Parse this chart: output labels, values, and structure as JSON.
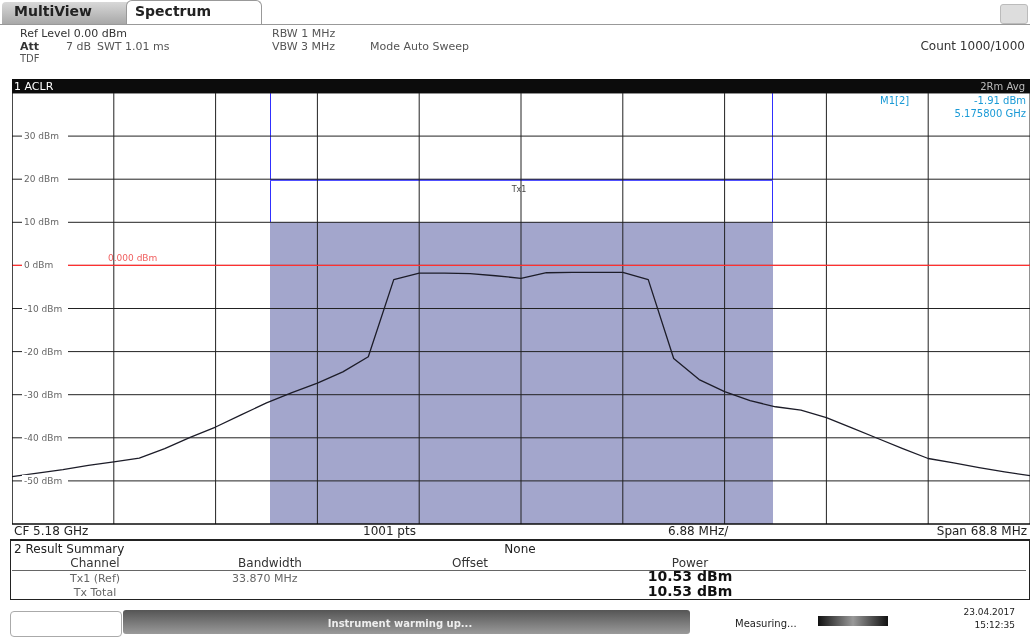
{
  "chart_data": {
    "type": "line",
    "categories": [
      null,
      null,
      null,
      null,
      null,
      null,
      null,
      null,
      null,
      null,
      null,
      null,
      null,
      null,
      null,
      null,
      null,
      null,
      null,
      null,
      null,
      null,
      null,
      null,
      null,
      null,
      null,
      null,
      null,
      null,
      null,
      null,
      null,
      null,
      null,
      null,
      null,
      null,
      null,
      null,
      null
    ],
    "series": [
      {
        "color": "#1c1c28",
        "values": [
          -49.0,
          -48.2,
          -47.4,
          -46.4,
          -45.6,
          -44.7,
          -42.5,
          -39.9,
          -37.5,
          -34.7,
          -31.9,
          -29.5,
          -27.3,
          -24.7,
          -21.2,
          -3.3,
          -1.8,
          -1.8,
          -1.9,
          -2.4,
          -3.0,
          -1.7,
          -1.6,
          -1.6,
          -1.6,
          -3.3,
          -21.6,
          -26.5,
          -29.3,
          -31.4,
          -32.8,
          -33.6,
          -35.3,
          -37.7,
          -40.1,
          -42.5,
          -44.8,
          -45.8,
          -46.9,
          -47.9,
          -48.8
        ]
      }
    ],
    "ylim": [
      -60,
      40
    ],
    "yticks": [
      {
        "value": -50,
        "label": "-50 dBm"
      },
      {
        "value": -40,
        "label": "-40 dBm"
      },
      {
        "value": -30,
        "label": "-30 dBm"
      },
      {
        "value": -20,
        "label": "-20 dBm"
      },
      {
        "value": -10,
        "label": "-10 dBm"
      },
      {
        "value": 0,
        "label": "0 dBm"
      },
      {
        "value": 10,
        "label": "10 dBm"
      },
      {
        "value": 20,
        "label": "20 dBm"
      },
      {
        "value": 30,
        "label": "30 dBm"
      }
    ],
    "tick_labels": "y",
    "grid": true,
    "marker": "none",
    "line_style": "solid",
    "ref_lines": [
      {
        "axis": "y",
        "value": 0,
        "label": "0.000 dBm",
        "color": "#ff3030"
      }
    ],
    "annotations": [
      "MultiView",
      "Spectrum",
      "Ref Level 0.00 dBm",
      "Att",
      "7 dB",
      "SWT 1.01 ms",
      "RBW 1 MHz",
      "VBW 3 MHz",
      "Mode Auto Sweep",
      "TDF",
      "Count 1000/1000",
      "1 ACLR",
      "2Rm Avg",
      "M1[2]",
      "-1.91 dBm",
      "5.175800 GHz",
      "CF 5.18 GHz",
      "1001 pts",
      "6.88 MHz/",
      "Span 68.8 MHz",
      "2 Result Summary",
      "None",
      "Channel",
      "Bandwidth",
      "Offset",
      "Power",
      "Tx1 (Ref)",
      "33.870 MHz",
      "10.53 dBm",
      "Tx Total",
      "10.53 dBm",
      "Instrument warming up...",
      "Measuring...",
      "23.04.2017",
      "15:12:35",
      "Tx1"
    ]
  }
}
